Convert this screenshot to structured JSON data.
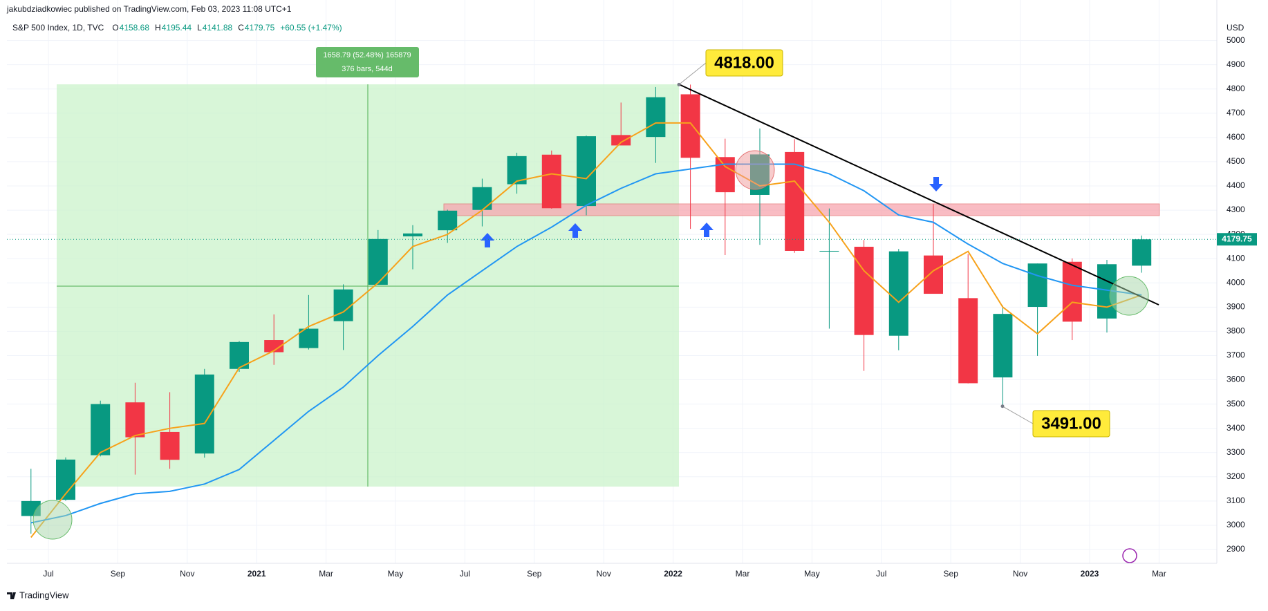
{
  "header": {
    "publisher": "jakubdziadkowiec published on TradingView.com, Feb 03, 2023 11:08 UTC+1",
    "symbol": "S&P 500 Index, 1D, TVC",
    "ohlc": [
      {
        "label": "O",
        "value": 4158.68
      },
      {
        "label": "H",
        "value": 4195.44
      },
      {
        "label": "L",
        "value": 4141.88
      },
      {
        "label": "C",
        "value": 4179.75
      }
    ],
    "change": "+60.55 (+1.47%)"
  },
  "chart_data": {
    "type": "candlestick",
    "x": [
      "2020-06",
      "2020-07",
      "2020-08",
      "2020-09",
      "2020-10",
      "2020-11",
      "2020-12",
      "2021-01",
      "2021-02",
      "2021-03",
      "2021-04",
      "2021-05",
      "2021-06",
      "2021-07",
      "2021-08",
      "2021-09",
      "2021-10",
      "2021-11",
      "2021-12",
      "2022-01",
      "2022-02",
      "2022-03",
      "2022-04",
      "2022-05",
      "2022-06",
      "2022-07",
      "2022-08",
      "2022-09",
      "2022-10",
      "2022-11",
      "2022-12",
      "2023-01",
      "2023-02"
    ],
    "open": [
      3038,
      3105,
      3289,
      3507,
      3385,
      3296,
      3645,
      3764,
      3731,
      3842,
      3992,
      4192,
      4217,
      4301,
      4407,
      4529,
      4317,
      4610,
      4602,
      4778,
      4519,
      4363,
      4540,
      4130,
      4149,
      3782,
      4113,
      3937,
      3610,
      3901,
      4087,
      3853,
      4071
    ],
    "high": [
      3233,
      3280,
      3514,
      3588,
      3549,
      3645,
      3760,
      3870,
      3950,
      3994,
      4218,
      4238,
      4302,
      4430,
      4537,
      4546,
      4608,
      4744,
      4808,
      4818,
      4595,
      4637,
      4593,
      4307,
      4177,
      4140,
      4325,
      4119,
      3906,
      4080,
      4101,
      4095,
      4195.44
    ],
    "low": [
      2965,
      3101,
      3284,
      3209,
      3233,
      3279,
      3633,
      3662,
      3725,
      3723,
      3992,
      4056,
      4165,
      4233,
      4368,
      4306,
      4279,
      4585,
      4495,
      4223,
      4115,
      4157,
      4124,
      3811,
      3637,
      3722,
      3955,
      3585,
      3491,
      3699,
      3764,
      3795,
      4042
    ],
    "close": [
      3100,
      3271,
      3500,
      3363,
      3270,
      3622,
      3756,
      3714,
      3811,
      3973,
      4181,
      4204,
      4298,
      4395,
      4523,
      4308,
      4605,
      4567,
      4766,
      4516,
      4374,
      4530,
      4132,
      4132,
      3785,
      4130,
      3955,
      3586,
      3872,
      4080,
      3840,
      4077,
      4179.75
    ],
    "up_color": "#089981",
    "down_color": "#f23645",
    "overlays": [
      {
        "color": "#f7a21b",
        "values": [
          2950,
          3130,
          3300,
          3370,
          3400,
          3420,
          3650,
          3720,
          3820,
          3880,
          4000,
          4150,
          4200,
          4300,
          4420,
          4450,
          4430,
          4580,
          4660,
          4660,
          4480,
          4400,
          4420,
          4250,
          4050,
          3920,
          4050,
          4130,
          3900,
          3790,
          3920,
          3900,
          3950
        ]
      },
      {
        "color": "#2196f3",
        "values": [
          3010,
          3040,
          3090,
          3130,
          3140,
          3170,
          3230,
          3350,
          3470,
          3570,
          3700,
          3820,
          3950,
          4050,
          4150,
          4230,
          4320,
          4390,
          4450,
          4470,
          4490,
          4490,
          4490,
          4450,
          4380,
          4280,
          4250,
          4160,
          4080,
          4030,
          3990,
          3970,
          3950
        ]
      }
    ],
    "ylim": [
      2843,
      5073
    ],
    "yticks": [
      2900,
      3000,
      3100,
      3200,
      3300,
      3400,
      3500,
      3600,
      3700,
      3800,
      3900,
      4000,
      4100,
      4200,
      4300,
      4400,
      4500,
      4600,
      4700,
      4800,
      4900,
      5000
    ],
    "y_unit": "USD",
    "xticks": [
      {
        "value": "2020-07",
        "label": "Jul"
      },
      {
        "value": "2020-09",
        "label": "Sep"
      },
      {
        "value": "2020-11",
        "label": "Nov"
      },
      {
        "value": "2021-01",
        "label": "2021"
      },
      {
        "value": "2021-03",
        "label": "Mar"
      },
      {
        "value": "2021-05",
        "label": "May"
      },
      {
        "value": "2021-07",
        "label": "Jul"
      },
      {
        "value": "2021-09",
        "label": "Sep"
      },
      {
        "value": "2021-11",
        "label": "Nov"
      },
      {
        "value": "2022-01",
        "label": "2022"
      },
      {
        "value": "2022-03",
        "label": "Mar"
      },
      {
        "value": "2022-05",
        "label": "May"
      },
      {
        "value": "2022-07",
        "label": "Jul"
      },
      {
        "value": "2022-09",
        "label": "Sep"
      },
      {
        "value": "2022-11",
        "label": "Nov"
      },
      {
        "value": "2023-01",
        "label": "2023"
      },
      {
        "value": "2023-03",
        "label": "Mar"
      }
    ],
    "grid": true,
    "last_price": 4179.75,
    "annotations": [
      {
        "value": 4818,
        "label": "4818.00"
      },
      {
        "value": 3491,
        "label": "3491.00"
      }
    ],
    "measure": {
      "line1": "1658.79 (52.48%) 165879",
      "line2": "376 bars, 544d"
    }
  },
  "branding": "TradingView"
}
